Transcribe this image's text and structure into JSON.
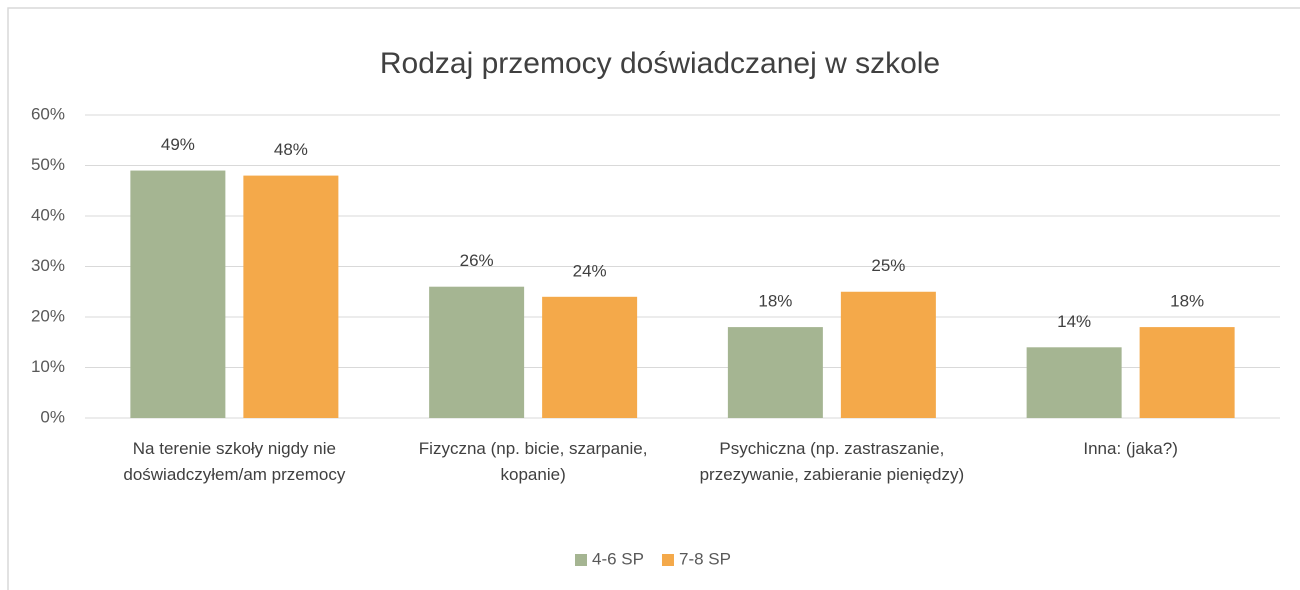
{
  "chart_data": {
    "type": "bar",
    "title": "Rodzaj przemocy doświadczanej w szkole",
    "categories": [
      "Na terenie szkoły nigdy nie doświadczyłem/am przemocy",
      "Fizyczna (np. bicie, szarpanie, kopanie)",
      "Psychiczna (np. zastraszanie, przezywanie, zabieranie pieniędzy)",
      "Inna: (jaka?)"
    ],
    "series": [
      {
        "name": "4-6 SP",
        "color": "#a5b592",
        "values": [
          49,
          26,
          18,
          14
        ],
        "value_labels": [
          "49%",
          "26%",
          "18%",
          "14%"
        ]
      },
      {
        "name": "7-8 SP",
        "color": "#f4a94a",
        "values": [
          48,
          24,
          25,
          18
        ],
        "value_labels": [
          "48%",
          "24%",
          "25%",
          "18%"
        ]
      }
    ],
    "ylim": [
      0,
      60
    ],
    "yticks": [
      {
        "value": 0,
        "label": "0%"
      },
      {
        "value": 10,
        "label": "10%"
      },
      {
        "value": 20,
        "label": "20%"
      },
      {
        "value": 30,
        "label": "30%"
      },
      {
        "value": 40,
        "label": "40%"
      },
      {
        "value": 50,
        "label": "50%"
      },
      {
        "value": 60,
        "label": "60%"
      }
    ],
    "grid": true,
    "legend": "bottom"
  }
}
